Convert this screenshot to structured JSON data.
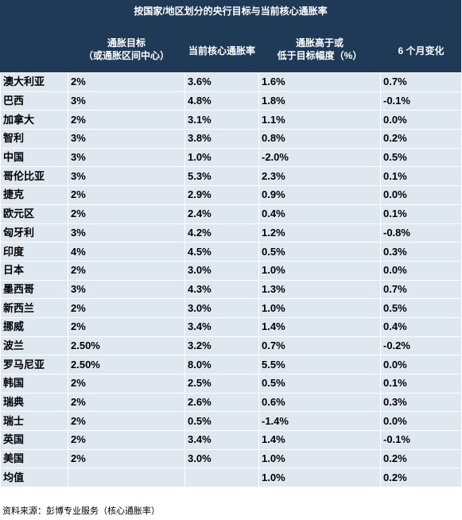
{
  "title": "按国家/地区划分的央行目标与当前核心通胀率",
  "columns": [
    {
      "lines": [
        "通胀目标",
        "（或通胀区间中心）"
      ]
    },
    {
      "lines": [
        "当前核心通胀率"
      ]
    },
    {
      "lines": [
        "通胀高于或",
        "低于目标幅度（%）"
      ]
    },
    {
      "lines": [
        "6 个月变化"
      ]
    }
  ],
  "rows": [
    {
      "country": "澳大利亚",
      "target": "2%",
      "core": "3.6%",
      "diff": "1.6%",
      "change": "0.7%"
    },
    {
      "country": "巴西",
      "target": "3%",
      "core": "4.8%",
      "diff": "1.8%",
      "change": "-0.1%"
    },
    {
      "country": "加拿大",
      "target": "2%",
      "core": "3.1%",
      "diff": "1.1%",
      "change": "0.0%"
    },
    {
      "country": "智利",
      "target": "3%",
      "core": "3.8%",
      "diff": "0.8%",
      "change": "0.2%"
    },
    {
      "country": "中国",
      "target": "3%",
      "core": "1.0%",
      "diff": "-2.0%",
      "change": "0.5%"
    },
    {
      "country": "哥伦比亚",
      "target": "3%",
      "core": "5.3%",
      "diff": "2.3%",
      "change": "0.1%"
    },
    {
      "country": "捷克",
      "target": "2%",
      "core": "2.9%",
      "diff": "0.9%",
      "change": "0.0%"
    },
    {
      "country": "欧元区",
      "target": "2%",
      "core": "2.4%",
      "diff": "0.4%",
      "change": "0.1%"
    },
    {
      "country": "匈牙利",
      "target": "3%",
      "core": "4.2%",
      "diff": "1.2%",
      "change": "-0.8%"
    },
    {
      "country": "印度",
      "target": "4%",
      "core": "4.5%",
      "diff": "0.5%",
      "change": "0.3%"
    },
    {
      "country": "日本",
      "target": "2%",
      "core": "3.0%",
      "diff": "1.0%",
      "change": "0.0%"
    },
    {
      "country": "墨西哥",
      "target": "3%",
      "core": "4.3%",
      "diff": "1.3%",
      "change": "0.7%"
    },
    {
      "country": "新西兰",
      "target": "2%",
      "core": "3.0%",
      "diff": "1.0%",
      "change": "0.5%"
    },
    {
      "country": "挪威",
      "target": "2%",
      "core": "3.4%",
      "diff": "1.4%",
      "change": "0.4%"
    },
    {
      "country": "波兰",
      "target": "2.50%",
      "core": "3.2%",
      "diff": "0.7%",
      "change": "-0.2%"
    },
    {
      "country": "罗马尼亚",
      "target": "2.50%",
      "core": "8.0%",
      "diff": "5.5%",
      "change": "0.0%"
    },
    {
      "country": "韩国",
      "target": "2%",
      "core": "2.5%",
      "diff": "0.5%",
      "change": "0.1%"
    },
    {
      "country": "瑞典",
      "target": "2%",
      "core": "2.6%",
      "diff": "0.6%",
      "change": "0.3%"
    },
    {
      "country": "瑞士",
      "target": "2%",
      "core": "0.5%",
      "diff": "-1.4%",
      "change": "0.0%"
    },
    {
      "country": "英国",
      "target": "2%",
      "core": "3.4%",
      "diff": "1.4%",
      "change": "-0.1%"
    },
    {
      "country": "美国",
      "target": "2%",
      "core": "3.0%",
      "diff": "1.0%",
      "change": "0.2%"
    },
    {
      "country": "均值",
      "target": "",
      "core": "",
      "diff": "1.0%",
      "change": "0.2%"
    }
  ],
  "source": "资料来源：彭博专业服务（核心通胀率）",
  "colors": {
    "header_bg": "#1f3a57",
    "cell_bg": "#dfe8f1",
    "header_text": "#ffffff"
  }
}
